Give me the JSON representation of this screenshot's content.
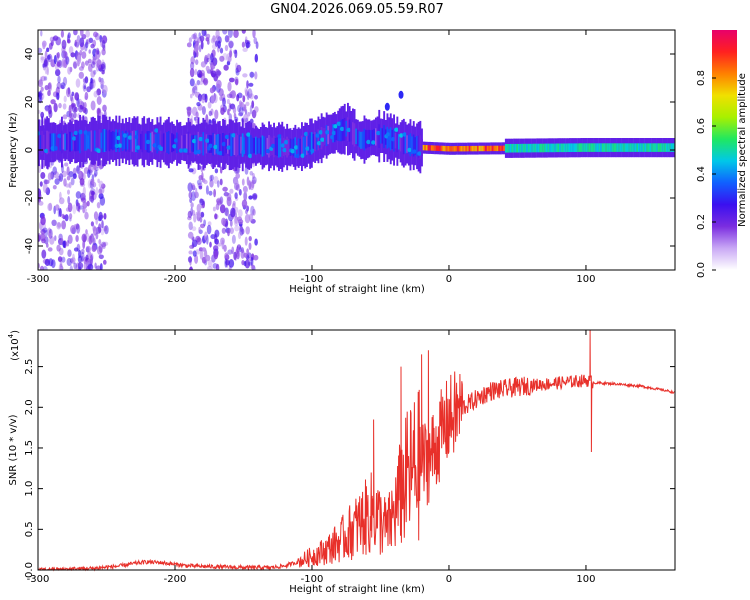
{
  "title": "GN04.2026.069.05.59.R07",
  "chart_data": [
    {
      "type": "heatmap",
      "name": "spectrogram",
      "xlabel": "Height of straight line (km)",
      "ylabel": "Frequency (Hz)",
      "xlim": [
        -300,
        165
      ],
      "ylim": [
        -50,
        50
      ],
      "xticks": [
        -300,
        -200,
        -100,
        0,
        100
      ],
      "yticks": [
        -40,
        -20,
        0,
        20,
        40
      ],
      "colorbar": {
        "label": "Normalized spectral amplitude",
        "range": [
          0,
          1
        ],
        "ticks": [
          0.0,
          0.2,
          0.4,
          0.6,
          0.8
        ],
        "tick_labels": [
          "0.0",
          "0.2",
          "0.4",
          "0.6",
          "0.8"
        ],
        "colors": [
          "#ffffff",
          "#c9a8f5",
          "#7b2de0",
          "#3a10f0",
          "#1060ff",
          "#00c8e8",
          "#20e860",
          "#a8f000",
          "#f0e000",
          "#ff8000",
          "#ff2020",
          "#e8006a"
        ]
      },
      "features": [
        {
          "name": "noise-band-left",
          "x_range": [
            -300,
            -250
          ],
          "freq_range": [
            -50,
            50
          ],
          "amplitude": 0.1
        },
        {
          "name": "noise-band-middle",
          "x_range": [
            -190,
            -140
          ],
          "freq_range": [
            -50,
            50
          ],
          "amplitude": 0.1
        },
        {
          "name": "main-signal",
          "x_range": [
            -300,
            165
          ],
          "center_freq": [
            [
              -300,
              3
            ],
            [
              -250,
              4
            ],
            [
              -200,
              3
            ],
            [
              -150,
              2
            ],
            [
              -110,
              1
            ],
            [
              -100,
              3
            ],
            [
              -90,
              6
            ],
            [
              -75,
              9
            ],
            [
              -65,
              4
            ],
            [
              -50,
              6
            ],
            [
              -35,
              3
            ],
            [
              -20,
              1
            ],
            [
              0,
              0.5
            ],
            [
              100,
              1
            ],
            [
              165,
              1
            ]
          ]
        },
        {
          "name": "spikes",
          "points": [
            [
              -45,
              18
            ],
            [
              -35,
              23
            ]
          ]
        }
      ]
    },
    {
      "type": "line",
      "name": "snr",
      "xlabel": "Height of straight line (km)",
      "ylabel": "SNR (10 * v/v)",
      "y_multiplier": "(x10",
      "y_multiplier_exp": "4",
      "xlim": [
        -300,
        165
      ],
      "ylim": [
        0,
        2.95
      ],
      "xticks": [
        -300,
        -200,
        -100,
        0,
        100
      ],
      "yticks": [
        0.0,
        0.5,
        1.0,
        1.5,
        2.0,
        2.5
      ],
      "ytick_labels": [
        "0.0",
        "0.5",
        "1.0",
        "1.5",
        "2.0",
        "2.5"
      ],
      "color": "#e8302a",
      "series": [
        {
          "name": "SNR",
          "x": [
            -300,
            -280,
            -260,
            -240,
            -230,
            -220,
            -210,
            -200,
            -190,
            -170,
            -150,
            -130,
            -120,
            -110,
            -100,
            -90,
            -80,
            -70,
            -60,
            -55,
            -50,
            -45,
            -40,
            -35,
            -30,
            -25,
            -20,
            -15,
            -10,
            -5,
            0,
            10,
            20,
            30,
            40,
            50,
            60,
            80,
            100,
            104,
            106,
            108,
            120,
            140,
            160,
            165
          ],
          "values": [
            0.0,
            0.01,
            0.02,
            0.05,
            0.08,
            0.1,
            0.09,
            0.07,
            0.05,
            0.04,
            0.03,
            0.03,
            0.05,
            0.1,
            0.17,
            0.24,
            0.35,
            0.5,
            0.65,
            0.72,
            0.6,
            0.5,
            0.7,
            0.95,
            1.15,
            1.25,
            1.3,
            1.35,
            1.5,
            1.7,
            1.85,
            2.0,
            2.1,
            2.2,
            2.22,
            2.25,
            2.27,
            2.3,
            2.33,
            2.32,
            2.3,
            2.3,
            2.29,
            2.26,
            2.2,
            2.18
          ]
        }
      ],
      "spikes": [
        [
          -55,
          1.85
        ],
        [
          -35,
          2.5
        ],
        [
          -20,
          2.65
        ],
        [
          -15,
          2.7
        ],
        [
          103,
          2.95
        ],
        [
          104,
          1.45
        ]
      ]
    }
  ]
}
